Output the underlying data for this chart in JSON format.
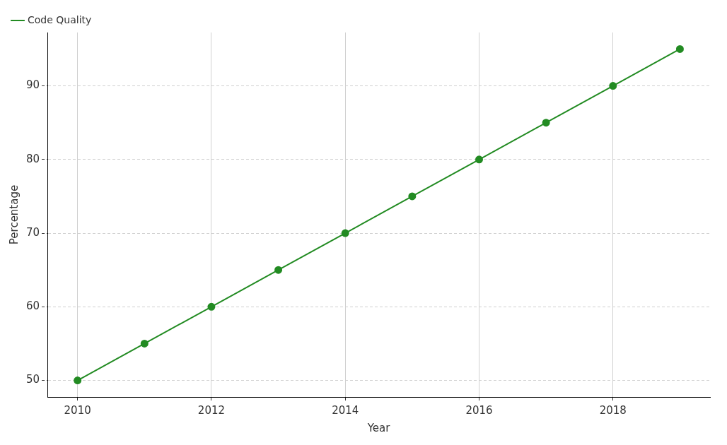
{
  "chart_data": {
    "type": "line",
    "xlabel": "Year",
    "ylabel": "Percentage",
    "x": [
      2010,
      2011,
      2012,
      2013,
      2014,
      2015,
      2016,
      2017,
      2018,
      2019
    ],
    "series": [
      {
        "name": "Code Quality",
        "color": "#228b22",
        "values": [
          50,
          55,
          60,
          65,
          70,
          75,
          80,
          85,
          90,
          95
        ]
      }
    ],
    "xlim": [
      2009.55,
      2019.45
    ],
    "ylim": [
      47.75,
      97.25
    ],
    "xticks": [
      2010,
      2012,
      2014,
      2016,
      2018
    ],
    "yticks": [
      50,
      60,
      70,
      80,
      90
    ],
    "grid": true,
    "legend": "top left",
    "marker": "circle",
    "line_style": "solid"
  }
}
